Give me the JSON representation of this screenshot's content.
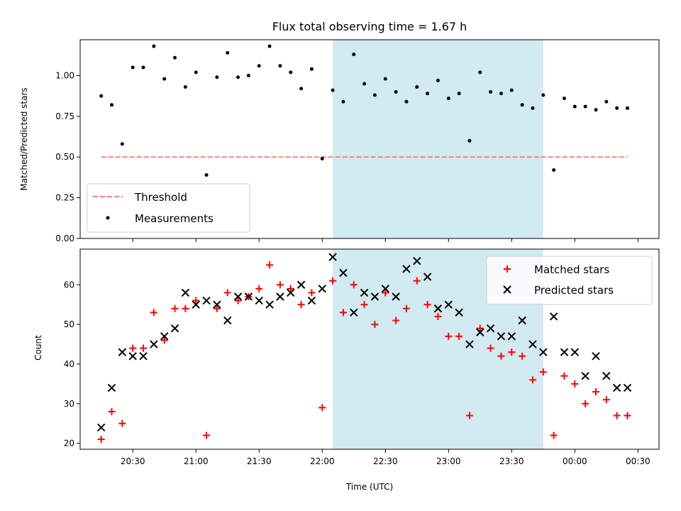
{
  "chart_data": [
    {
      "type": "scatter",
      "title": "Flux total observing time = 1.67 h",
      "xlabel": "",
      "ylabel": "Matched/Predicted stars",
      "xlim": [
        "20:05",
        "00:40"
      ],
      "ylim": [
        0,
        1.22
      ],
      "yticks": [
        "0.00",
        "0.25",
        "0.50",
        "0.75",
        "1.00"
      ],
      "shaded_region": {
        "from": "22:05",
        "to": "23:45",
        "color": "#add8e6"
      },
      "legend": {
        "position": "lower-left",
        "entries": [
          "Threshold",
          "Measurements"
        ]
      },
      "threshold": {
        "name": "Threshold",
        "value": 0.5,
        "from": "20:15",
        "to": "00:25",
        "color": "#ff7f7f"
      },
      "series": [
        {
          "name": "Measurements",
          "color": "#000000",
          "marker": "dot",
          "x": [
            "20:15",
            "20:20",
            "20:25",
            "20:30",
            "20:35",
            "20:40",
            "20:45",
            "20:50",
            "20:55",
            "21:00",
            "21:05",
            "21:10",
            "21:15",
            "21:20",
            "21:25",
            "21:30",
            "21:35",
            "21:40",
            "21:45",
            "21:50",
            "21:55",
            "22:00",
            "22:05",
            "22:10",
            "22:15",
            "22:20",
            "22:25",
            "22:30",
            "22:35",
            "22:40",
            "22:45",
            "22:50",
            "22:55",
            "23:00",
            "23:05",
            "23:10",
            "23:15",
            "23:20",
            "23:25",
            "23:30",
            "23:35",
            "23:40",
            "23:45",
            "23:50",
            "23:55",
            "00:00",
            "00:05",
            "00:10",
            "00:15",
            "00:20",
            "00:25"
          ],
          "values": [
            0.875,
            0.82,
            0.58,
            1.05,
            1.05,
            1.18,
            0.98,
            1.11,
            0.93,
            1.02,
            0.39,
            0.99,
            1.14,
            0.99,
            1.0,
            1.06,
            1.18,
            1.06,
            1.02,
            0.92,
            1.04,
            0.49,
            0.91,
            0.84,
            1.13,
            0.95,
            0.88,
            0.98,
            0.9,
            0.84,
            0.93,
            0.89,
            0.97,
            0.86,
            0.89,
            0.6,
            1.02,
            0.9,
            0.89,
            0.91,
            0.82,
            0.8,
            0.88,
            0.42,
            0.86,
            0.81,
            0.81,
            0.79,
            0.84,
            0.8,
            0.8
          ]
        }
      ]
    },
    {
      "type": "scatter",
      "title": "",
      "xlabel": "Time (UTC)",
      "ylabel": "Count",
      "xlim": [
        "20:05",
        "00:40"
      ],
      "ylim": [
        18.5,
        69
      ],
      "yticks": [
        "20",
        "30",
        "40",
        "50",
        "60"
      ],
      "xticks": [
        "20:30",
        "21:00",
        "21:30",
        "22:00",
        "22:30",
        "23:00",
        "23:30",
        "00:00",
        "00:30"
      ],
      "shaded_region": {
        "from": "22:05",
        "to": "23:45",
        "color": "#add8e6"
      },
      "legend": {
        "position": "top-right",
        "entries": [
          "Matched stars",
          "Predicted stars"
        ]
      },
      "x": [
        "20:15",
        "20:20",
        "20:25",
        "20:30",
        "20:35",
        "20:40",
        "20:45",
        "20:50",
        "20:55",
        "21:00",
        "21:05",
        "21:10",
        "21:15",
        "21:20",
        "21:25",
        "21:30",
        "21:35",
        "21:40",
        "21:45",
        "21:50",
        "21:55",
        "22:00",
        "22:05",
        "22:10",
        "22:15",
        "22:20",
        "22:25",
        "22:30",
        "22:35",
        "22:40",
        "22:45",
        "22:50",
        "22:55",
        "23:00",
        "23:05",
        "23:10",
        "23:15",
        "23:20",
        "23:25",
        "23:30",
        "23:35",
        "23:40",
        "23:45",
        "23:50",
        "23:55",
        "00:00",
        "00:05",
        "00:10",
        "00:15",
        "00:20",
        "00:25"
      ],
      "series": [
        {
          "name": "Matched stars",
          "color": "#ff0000",
          "marker": "plus",
          "values": [
            21,
            28,
            25,
            44,
            44,
            53,
            46,
            54,
            54,
            56,
            22,
            54,
            58,
            56,
            57,
            59,
            65,
            60,
            59,
            55,
            58,
            29,
            61,
            53,
            60,
            55,
            50,
            58,
            51,
            54,
            61,
            55,
            52,
            47,
            47,
            27,
            49,
            44,
            42,
            43,
            42,
            36,
            38,
            22,
            37,
            35,
            30,
            33,
            31,
            27,
            27
          ]
        },
        {
          "name": "Predicted stars",
          "color": "#000000",
          "marker": "x",
          "values": [
            24,
            34,
            43,
            42,
            42,
            45,
            47,
            49,
            58,
            55,
            56,
            55,
            51,
            57,
            57,
            56,
            55,
            57,
            58,
            60,
            56,
            59,
            67,
            63,
            53,
            58,
            57,
            59,
            57,
            64,
            66,
            62,
            54,
            55,
            53,
            45,
            48,
            49,
            47,
            47,
            51,
            45,
            43,
            52,
            43,
            43,
            37,
            42,
            37,
            34,
            34
          ]
        }
      ]
    }
  ]
}
